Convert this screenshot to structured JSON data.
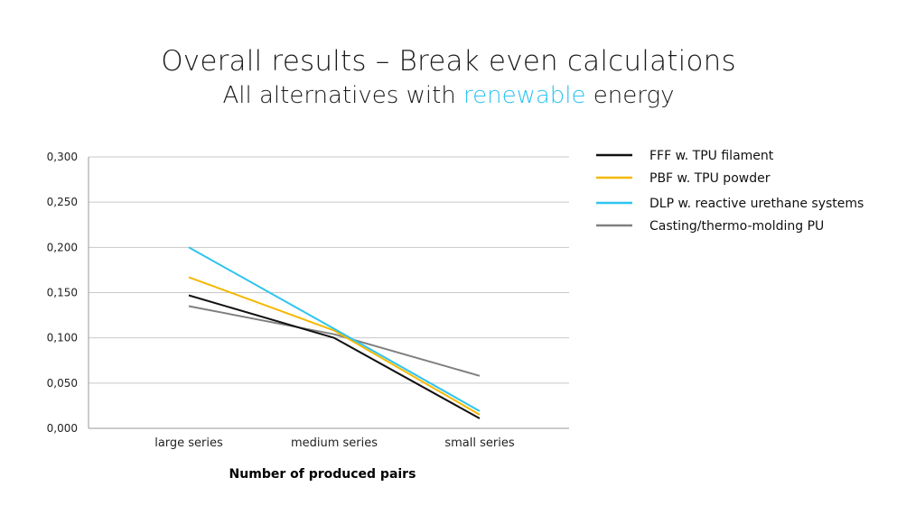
{
  "header": {
    "title": "Overall results – Break even calculations",
    "subtitle_pre": "All alternatives with ",
    "subtitle_accent": "renewable",
    "subtitle_post": " energy",
    "accent_color": "#2ec4f0"
  },
  "chart_data": {
    "type": "line",
    "categories": [
      "large series",
      "medium series",
      "small series"
    ],
    "xlabel": "Number of produced pairs",
    "ylabel": "",
    "ylim": [
      0,
      0.3
    ],
    "yticks": [
      "0,000",
      "0,050",
      "0,100",
      "0,150",
      "0,200",
      "0,250",
      "0,300"
    ],
    "ytick_values": [
      0,
      0.05,
      0.1,
      0.15,
      0.2,
      0.25,
      0.3
    ],
    "grid": true,
    "legend_position": "right",
    "series": [
      {
        "name": "FFF w. TPU filament",
        "color": "#111111",
        "values": [
          0.147,
          0.1,
          0.011
        ]
      },
      {
        "name": "PBF w. TPU powder",
        "color": "#f5b800",
        "values": [
          0.167,
          0.108,
          0.015
        ]
      },
      {
        "name": "DLP w. reactive urethane systems",
        "color": "#2ec4f0",
        "values": [
          0.2,
          0.11,
          0.019
        ]
      },
      {
        "name": "Casting/thermo-molding PU",
        "color": "#808080",
        "values": [
          0.135,
          0.104,
          0.058
        ]
      }
    ]
  }
}
